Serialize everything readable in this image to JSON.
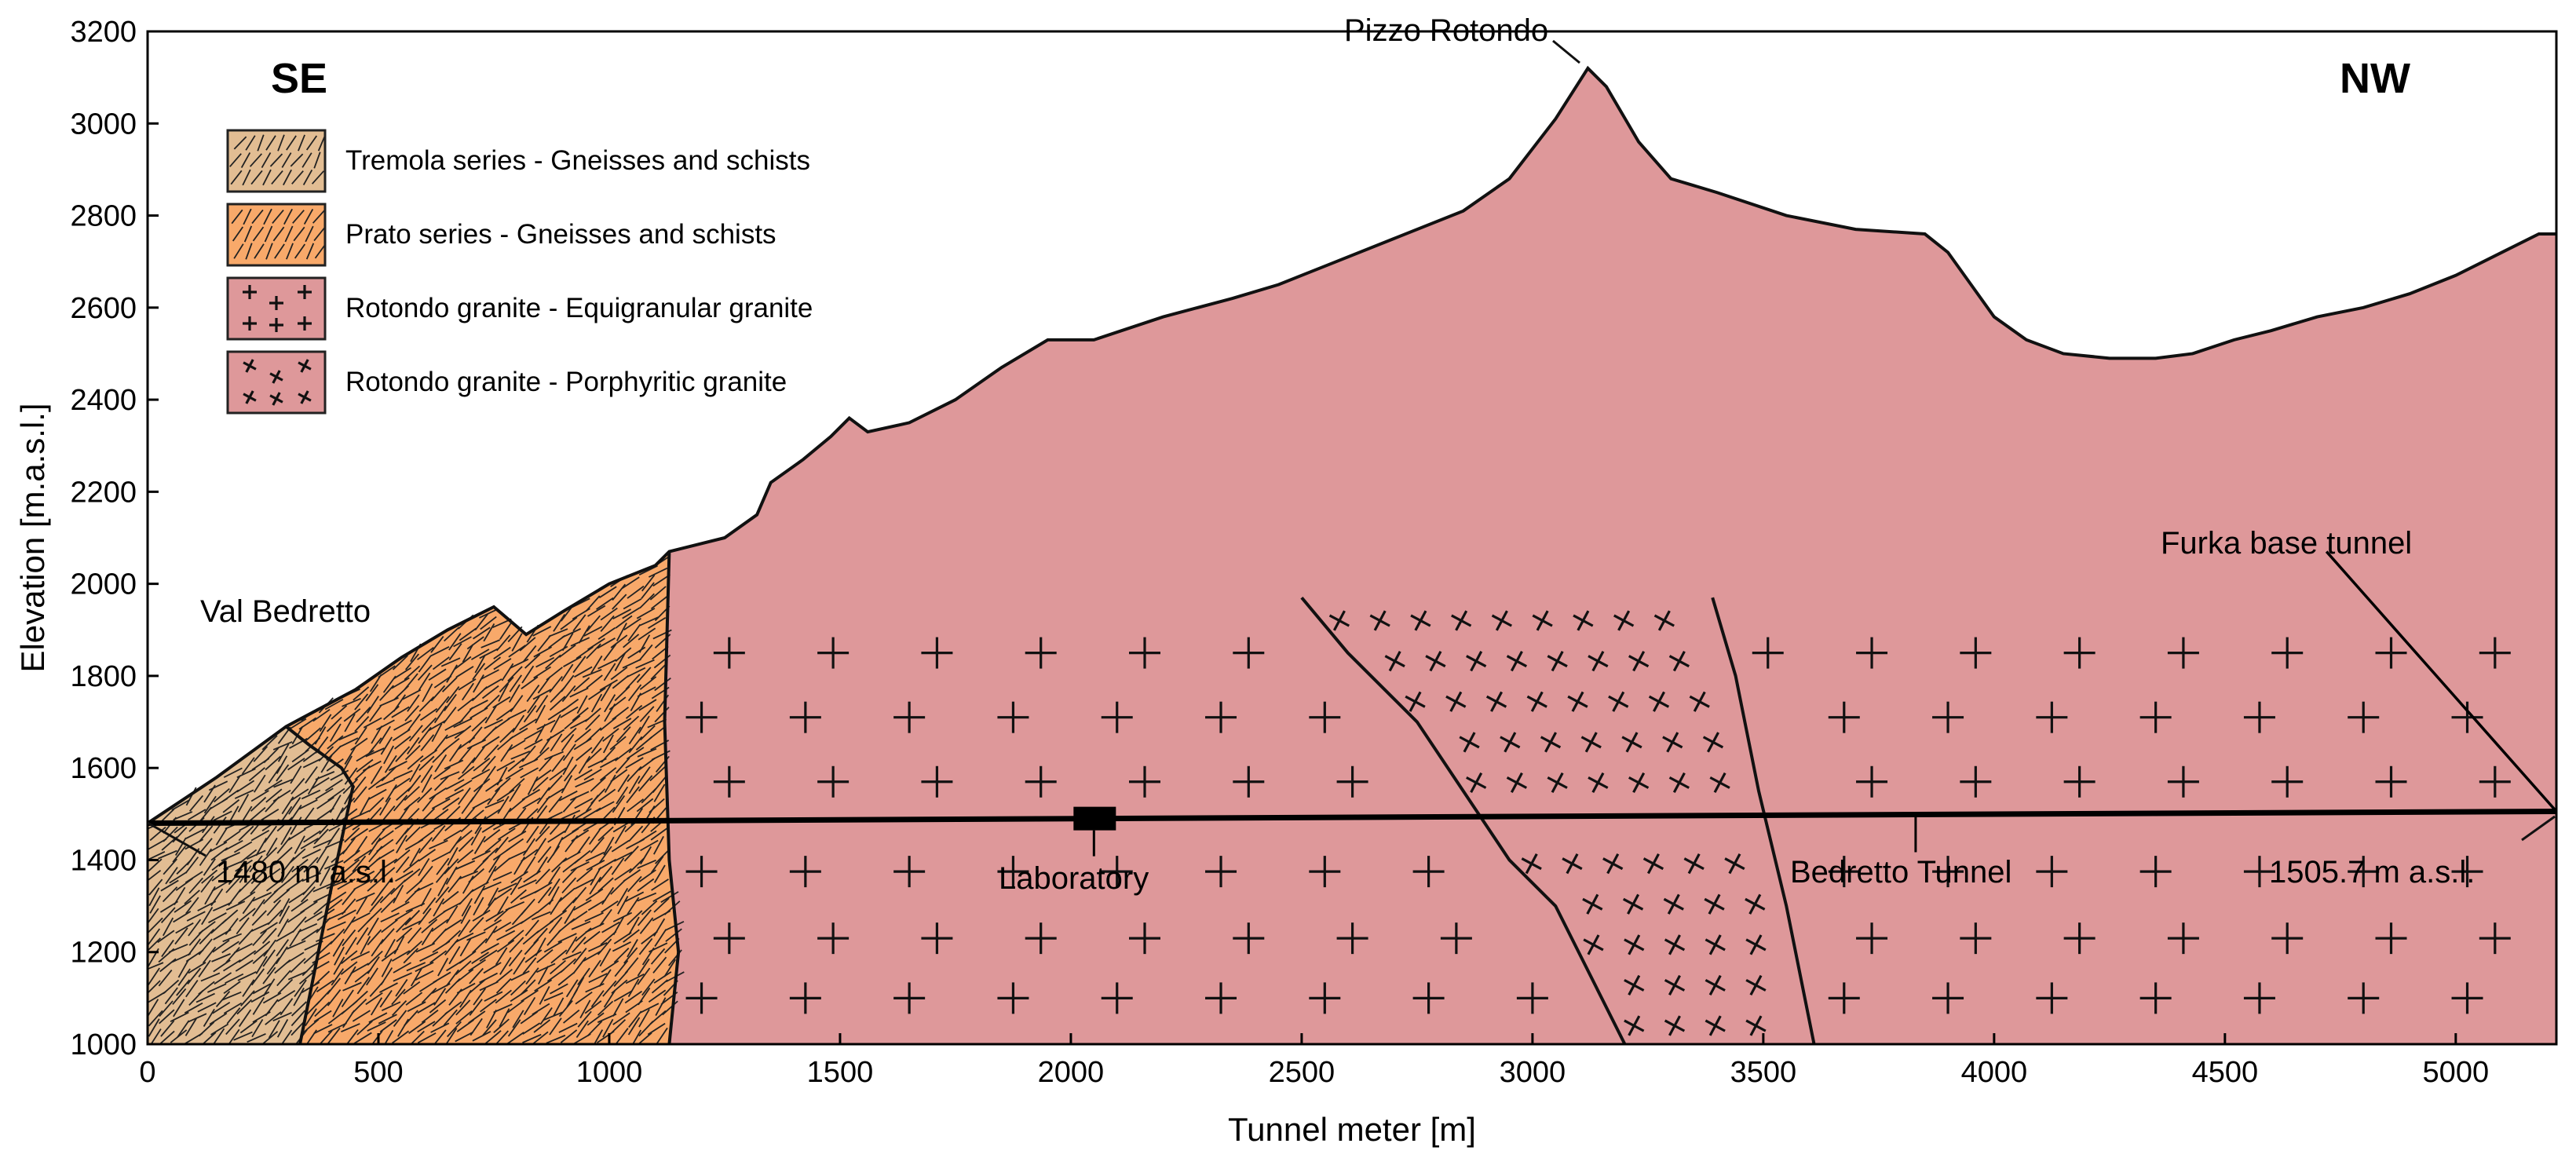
{
  "chart_data": {
    "type": "cross-section",
    "xlabel": "Tunnel meter [m]",
    "ylabel": "Elevation [m.a.s.l.]",
    "xlim": [
      0,
      5218
    ],
    "ylim": [
      1000,
      3200
    ],
    "x_ticks": [
      "0",
      "500",
      "1000",
      "1500",
      "2000",
      "2500",
      "3000",
      "3500",
      "4000",
      "4500",
      "5000"
    ],
    "x_tick_values": [
      0,
      500,
      1000,
      1500,
      2000,
      2500,
      3000,
      3500,
      4000,
      4500,
      5000
    ],
    "y_ticks": [
      "1000",
      "1200",
      "1400",
      "1600",
      "1800",
      "2000",
      "2200",
      "2400",
      "2600",
      "2800",
      "3000",
      "3200"
    ],
    "y_tick_values": [
      1000,
      1200,
      1400,
      1600,
      1800,
      2000,
      2200,
      2400,
      2600,
      2800,
      3000,
      3200
    ],
    "directions": {
      "left": "SE",
      "right": "NW"
    },
    "legend": [
      {
        "key": "tremola",
        "label": "Tremola series - Gneisses and schists",
        "color": "#e2bd93",
        "pattern": "wavy-lines"
      },
      {
        "key": "prato",
        "label": "Prato series - Gneisses and schists",
        "color": "#f8a96a",
        "pattern": "wavy-lines"
      },
      {
        "key": "equi",
        "label": "Rotondo granite - Equigranular granite",
        "color": "#de989a",
        "pattern": "upright-crosses"
      },
      {
        "key": "porph",
        "label": "Rotondo granite - Porphyritic granite",
        "color": "#de989a",
        "pattern": "tilted-crosses"
      }
    ],
    "topography": [
      [
        0,
        1480
      ],
      [
        150,
        1580
      ],
      [
        300,
        1690
      ],
      [
        450,
        1770
      ],
      [
        550,
        1840
      ],
      [
        650,
        1900
      ],
      [
        750,
        1950
      ],
      [
        820,
        1890
      ],
      [
        900,
        1940
      ],
      [
        1000,
        2000
      ],
      [
        1100,
        2040
      ],
      [
        1130,
        2070
      ],
      [
        1250,
        2100
      ],
      [
        1320,
        2150
      ],
      [
        1350,
        2220
      ],
      [
        1420,
        2270
      ],
      [
        1480,
        2320
      ],
      [
        1520,
        2360
      ],
      [
        1560,
        2330
      ],
      [
        1650,
        2350
      ],
      [
        1750,
        2400
      ],
      [
        1850,
        2470
      ],
      [
        1950,
        2530
      ],
      [
        2050,
        2530
      ],
      [
        2200,
        2580
      ],
      [
        2350,
        2620
      ],
      [
        2450,
        2650
      ],
      [
        2550,
        2690
      ],
      [
        2700,
        2750
      ],
      [
        2850,
        2810
      ],
      [
        2950,
        2880
      ],
      [
        3050,
        3010
      ],
      [
        3120,
        3120
      ],
      [
        3160,
        3080
      ],
      [
        3230,
        2960
      ],
      [
        3300,
        2880
      ],
      [
        3400,
        2850
      ],
      [
        3550,
        2800
      ],
      [
        3700,
        2770
      ],
      [
        3850,
        2760
      ],
      [
        3900,
        2720
      ],
      [
        3950,
        2650
      ],
      [
        4000,
        2580
      ],
      [
        4070,
        2530
      ],
      [
        4150,
        2500
      ],
      [
        4250,
        2490
      ],
      [
        4350,
        2490
      ],
      [
        4430,
        2500
      ],
      [
        4520,
        2530
      ],
      [
        4600,
        2550
      ],
      [
        4700,
        2580
      ],
      [
        4800,
        2600
      ],
      [
        4900,
        2630
      ],
      [
        5000,
        2670
      ],
      [
        5100,
        2720
      ],
      [
        5180,
        2760
      ],
      [
        5218,
        2760
      ]
    ],
    "boundaries": {
      "tremola_prato": [
        [
          330,
          1000
        ],
        [
          400,
          1350
        ],
        [
          445,
          1560
        ],
        [
          420,
          1600
        ],
        [
          350,
          1650
        ],
        [
          300,
          1690
        ]
      ],
      "prato_granite": [
        [
          1130,
          1000
        ],
        [
          1150,
          1200
        ],
        [
          1130,
          1400
        ],
        [
          1120,
          1700
        ],
        [
          1130,
          2070
        ]
      ],
      "porphyritic_west": [
        [
          2500,
          1970
        ],
        [
          2600,
          1850
        ],
        [
          2750,
          1700
        ],
        [
          2850,
          1550
        ],
        [
          2950,
          1400
        ],
        [
          3050,
          1300
        ],
        [
          3200,
          1000
        ]
      ],
      "porphyritic_east": [
        [
          3390,
          1970
        ],
        [
          3440,
          1800
        ],
        [
          3490,
          1550
        ],
        [
          3550,
          1300
        ],
        [
          3610,
          1000
        ]
      ]
    },
    "tunnel": {
      "label": "Bedretto Tunnel",
      "start": [
        0,
        1480
      ],
      "end": [
        5218,
        1505.7
      ]
    },
    "laboratory": {
      "label": "Laboratory",
      "x": 2050
    },
    "annotations": {
      "peak": "Pizzo Rotondo",
      "valley": "Val Bedretto",
      "start_elev": "1480 m a.s.l.",
      "end_elev": "1505.7 m a.s.l.",
      "furka": "Furka base tunnel"
    }
  }
}
